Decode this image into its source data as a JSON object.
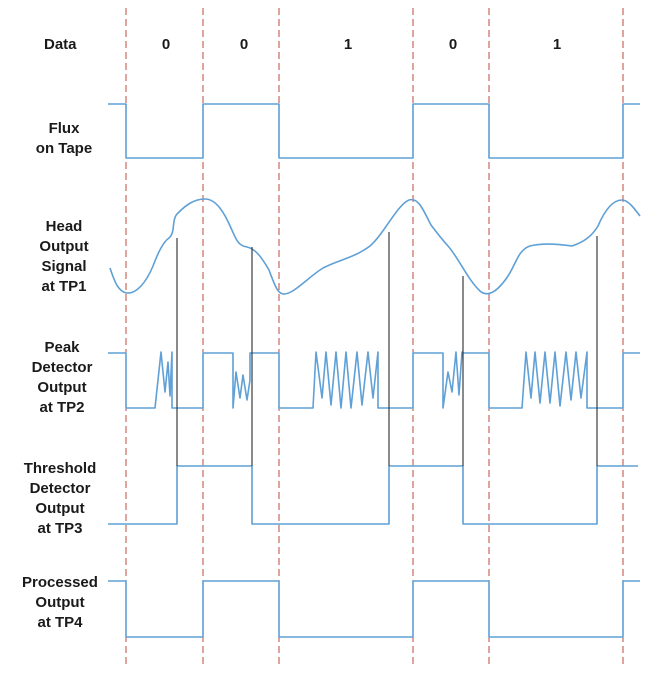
{
  "colors": {
    "waveform": "#5fa0d6",
    "boundary": "#c04a3c",
    "marker": "#2a2a2a",
    "text": "#1a1a1a"
  },
  "data_row": {
    "label": "Data",
    "bits": [
      "0",
      "0",
      "1",
      "0",
      "1"
    ]
  },
  "signals": [
    {
      "id": "flux",
      "label_lines": [
        "Flux",
        "on Tape"
      ]
    },
    {
      "id": "head",
      "label_lines": [
        "Head",
        "Output",
        "Signal",
        "at TP1"
      ]
    },
    {
      "id": "peak",
      "label_lines": [
        "Peak",
        "Detector",
        "Output",
        "at TP2"
      ]
    },
    {
      "id": "threshold",
      "label_lines": [
        "Threshold",
        "Detector",
        "Output",
        "at TP3"
      ]
    },
    {
      "id": "processed",
      "label_lines": [
        "Processed",
        "Output",
        "at TP4"
      ]
    }
  ]
}
